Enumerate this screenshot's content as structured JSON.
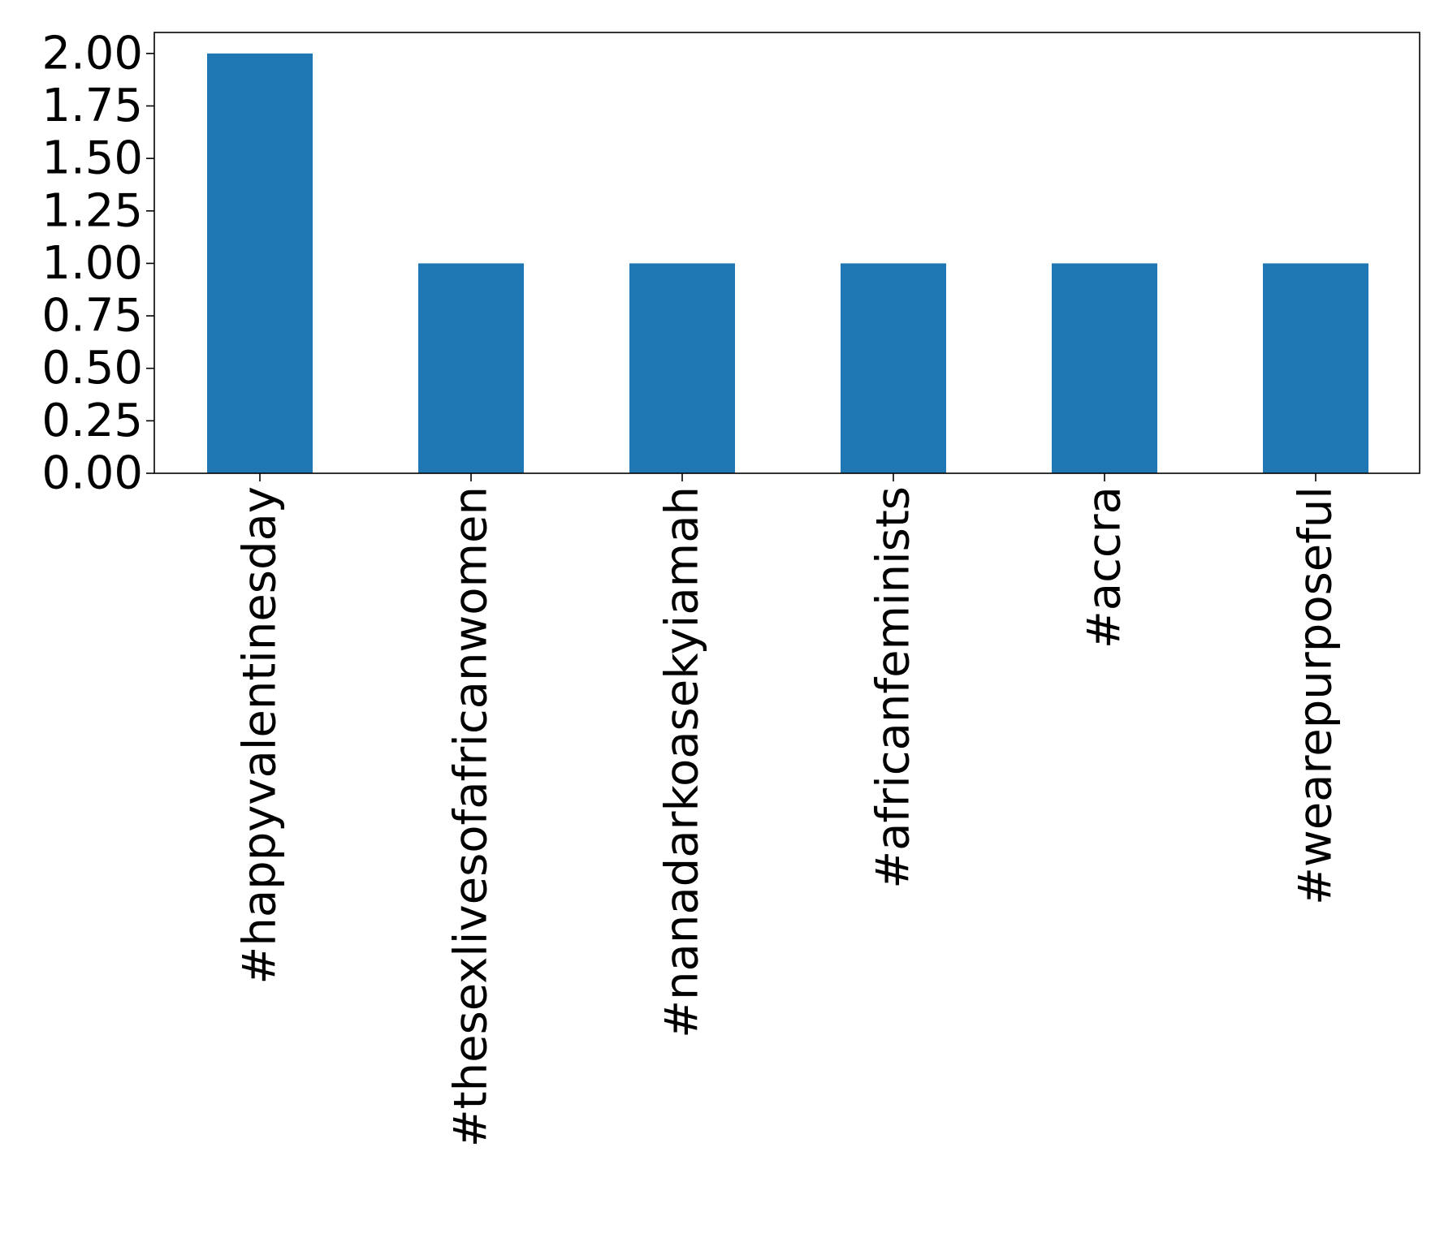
{
  "chart_data": {
    "type": "bar",
    "title": "",
    "xlabel": "",
    "ylabel": "",
    "categories": [
      "#happyvalentinesday",
      "#thesexlivesofafricanwomen",
      "#nanadarkoasekyiamah",
      "#africanfeminists",
      "#accra",
      "#wearepurposeful"
    ],
    "values": [
      2,
      1,
      1,
      1,
      1,
      1
    ],
    "ylim": [
      0,
      2.1
    ],
    "yticks": [
      "0.00",
      "0.25",
      "0.50",
      "0.75",
      "1.00",
      "1.25",
      "1.50",
      "1.75",
      "2.00"
    ],
    "ytick_values": [
      0,
      0.25,
      0.5,
      0.75,
      1.0,
      1.25,
      1.5,
      1.75,
      2.0
    ],
    "grid": false,
    "legend": "none",
    "colors": {
      "bar": "#1f77b4",
      "axis": "#000000",
      "background": "#ffffff"
    }
  }
}
